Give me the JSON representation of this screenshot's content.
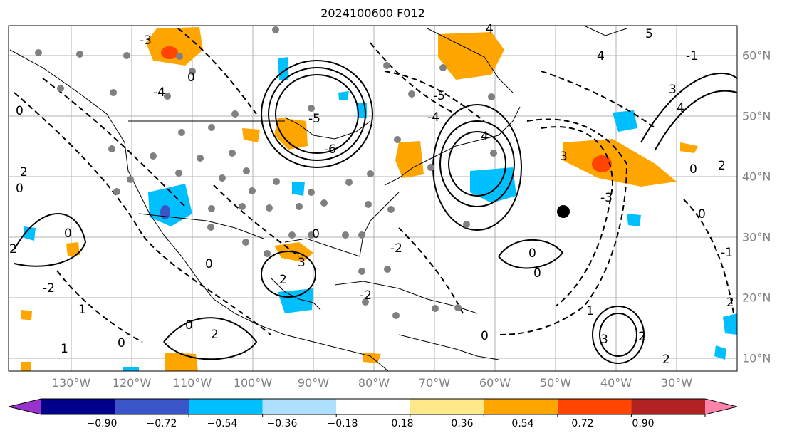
{
  "title": "2024100600 F012",
  "lon_labels": [
    "130°W",
    "120°W",
    "110°W",
    "100°W",
    "90°W",
    "80°W",
    "70°W",
    "60°W",
    "50°W",
    "40°W",
    "30°W"
  ],
  "lat_labels": [
    "60°N",
    "50°N",
    "40°N",
    "30°N",
    "20°N",
    "10°N"
  ],
  "contour_labels": [
    "-3",
    "-4",
    "0",
    "1",
    "2",
    "3",
    "4",
    "5",
    "-1",
    "-2",
    "-5",
    "-6"
  ],
  "colorbar": {
    "ticks": [
      "−0.90",
      "−0.72",
      "−0.54",
      "−0.36",
      "−0.18",
      "0.18",
      "0.36",
      "0.54",
      "0.72",
      "0.90"
    ],
    "colors": [
      "#9932CC",
      "#00008B",
      "#3A55C8",
      "#00BFFF",
      "#ADDFFF",
      "#FFFFFF",
      "#FFE88A",
      "#FFA500",
      "#FF4500",
      "#B22222",
      "#FF82AB"
    ]
  },
  "colors": {
    "land": "#000000",
    "grid": "#b0b0b0",
    "station": "#808080",
    "highlight_station": "#000000"
  }
}
